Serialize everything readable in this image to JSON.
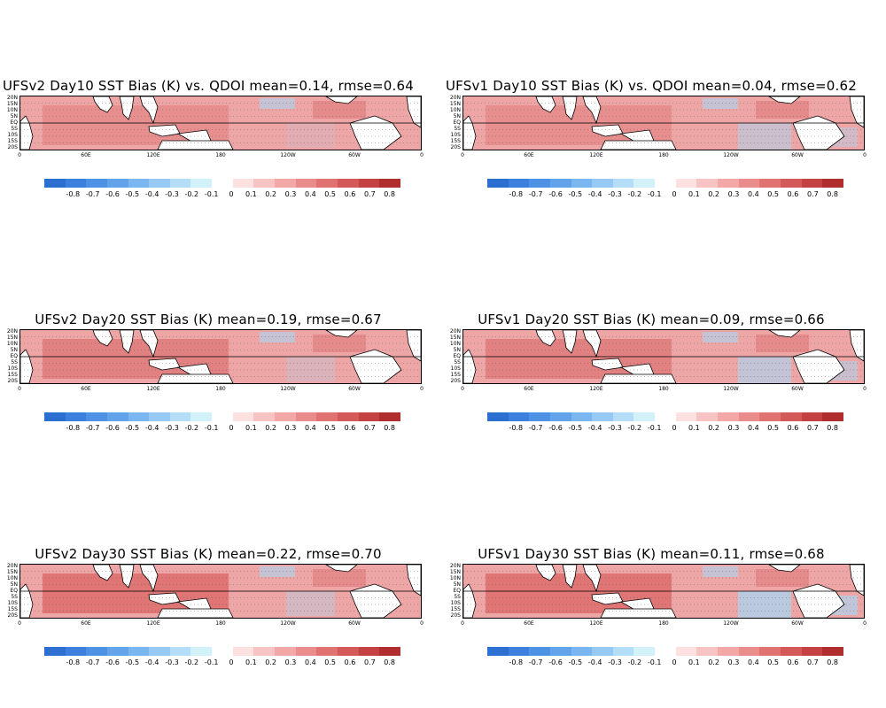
{
  "panels": [
    {
      "title": "UFSv2 Day10 SST Bias (K) vs. QDOI mean=0.14, rmse=0.64",
      "model": "UFSv2",
      "day": 10
    },
    {
      "title": "UFSv1 Day10 SST Bias (K) vs. QDOI mean=0.04, rmse=0.62",
      "model": "UFSv1",
      "day": 10
    },
    {
      "title": "UFSv2 Day20 SST Bias (K) mean=0.19, rmse=0.67",
      "model": "UFSv2",
      "day": 20
    },
    {
      "title": "UFSv1 Day20 SST Bias (K) mean=0.09, rmse=0.66",
      "model": "UFSv1",
      "day": 20
    },
    {
      "title": "UFSv2 Day30 SST Bias (K) mean=0.22, rmse=0.70",
      "model": "UFSv2",
      "day": 30
    },
    {
      "title": "UFSv1 Day30 SST Bias (K) mean=0.11, rmse=0.68",
      "model": "UFSv1",
      "day": 30
    }
  ],
  "lat_labels": [
    "20N",
    "15N",
    "10N",
    "5N",
    "EQ",
    "5S",
    "10S",
    "15S",
    "20S"
  ],
  "lon_labels": [
    "0",
    "60E",
    "120E",
    "180",
    "120W",
    "60W",
    "0"
  ],
  "colorbar": {
    "labels": [
      "-0.8",
      "-0.7",
      "-0.6",
      "-0.5",
      "-0.4",
      "-0.3",
      "-0.2",
      "-0.1",
      "0",
      "0.1",
      "0.2",
      "0.3",
      "0.4",
      "0.5",
      "0.6",
      "0.7",
      "0.8"
    ],
    "colors": [
      "#2b6fd1",
      "#3a80dc",
      "#4d92e4",
      "#62a3ea",
      "#7ab6ef",
      "#96c9f3",
      "#b4def7",
      "#d2f2fa",
      "#ffffff",
      "#fde0e0",
      "#f8c4c3",
      "#f2a8a7",
      "#ea8c8c",
      "#e07272",
      "#d45959",
      "#c54242",
      "#b02e2e"
    ]
  },
  "map_colors": {
    "ocean_warm": "#eea5a5",
    "ocean_hot": "#d96565",
    "ocean_cool": "#a8d6f2",
    "land": "#ffffff",
    "coast": "#000000"
  }
}
